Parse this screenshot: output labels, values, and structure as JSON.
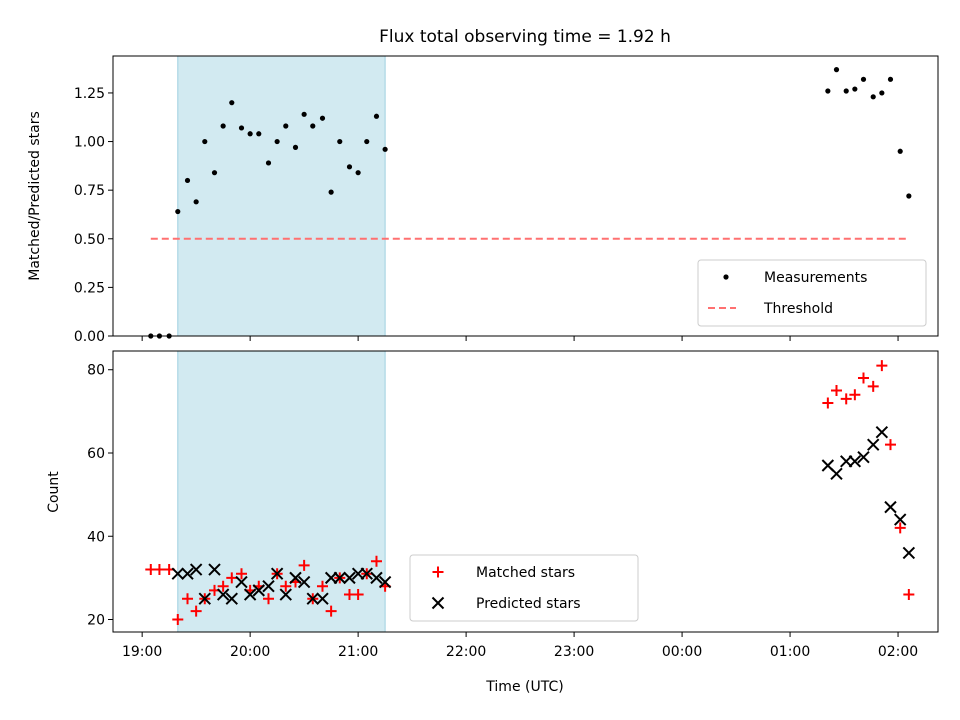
{
  "chart_data": [
    {
      "type": "scatter",
      "title": "Flux total observing time = 1.92 h",
      "ylabel": "Matched/Predicted stars",
      "xlabel": "",
      "xlim": [
        -0.27,
        7.37
      ],
      "ylim": [
        0,
        1.44
      ],
      "yticks": [
        0.0,
        0.25,
        0.5,
        0.75,
        1.0,
        1.25
      ],
      "ytick_labels": [
        "0.00",
        "0.25",
        "0.50",
        "0.75",
        "1.00",
        "1.25"
      ],
      "highlight_span": {
        "x0": 0.33,
        "x1": 2.25,
        "color": "#add8e6"
      },
      "legend_position": "lower right",
      "series": [
        {
          "name": "Measurements",
          "kind": "dot",
          "color": "#000000",
          "x": [
            0.08,
            0.16,
            0.25,
            0.33,
            0.42,
            0.5,
            0.58,
            0.67,
            0.75,
            0.83,
            0.92,
            1.0,
            1.08,
            1.17,
            1.25,
            1.33,
            1.42,
            1.5,
            1.58,
            1.67,
            1.75,
            1.83,
            1.92,
            2.0,
            2.08,
            2.17,
            2.25,
            6.35,
            6.43,
            6.52,
            6.6,
            6.68,
            6.77,
            6.85,
            6.93,
            7.02,
            7.1
          ],
          "y": [
            0.0,
            0.0,
            0.0,
            0.64,
            0.8,
            0.69,
            1.0,
            0.84,
            1.08,
            1.2,
            1.07,
            1.04,
            1.04,
            0.89,
            1.0,
            1.08,
            0.97,
            1.14,
            1.08,
            1.12,
            0.74,
            1.0,
            0.87,
            0.84,
            1.0,
            1.13,
            0.96,
            1.26,
            1.37,
            1.26,
            1.27,
            1.32,
            1.23,
            1.25,
            1.32,
            0.95,
            0.72
          ]
        },
        {
          "name": "Threshold",
          "kind": "dashed-line",
          "color": "#ff7070",
          "x": [
            0.08,
            7.1
          ],
          "y": [
            0.5,
            0.5
          ]
        }
      ]
    },
    {
      "type": "scatter",
      "title": "",
      "ylabel": "Count",
      "xlabel": "Time (UTC)",
      "xlim": [
        -0.27,
        7.37
      ],
      "ylim": [
        17,
        84.5
      ],
      "yticks": [
        20,
        40,
        60,
        80
      ],
      "ytick_labels": [
        "20",
        "40",
        "60",
        "80"
      ],
      "xticks": [
        0,
        1,
        2,
        3,
        4,
        5,
        6,
        7
      ],
      "xtick_labels": [
        "19:00",
        "20:00",
        "21:00",
        "22:00",
        "23:00",
        "00:00",
        "01:00",
        "02:00"
      ],
      "highlight_span": {
        "x0": 0.33,
        "x1": 2.25,
        "color": "#add8e6"
      },
      "legend_position": "lower center",
      "series": [
        {
          "name": "Matched stars",
          "kind": "plus",
          "color": "#ff0000",
          "x": [
            0.08,
            0.16,
            0.25,
            0.33,
            0.42,
            0.5,
            0.58,
            0.67,
            0.75,
            0.83,
            0.92,
            1.0,
            1.08,
            1.17,
            1.25,
            1.33,
            1.42,
            1.5,
            1.58,
            1.67,
            1.75,
            1.83,
            1.92,
            2.0,
            2.08,
            2.17,
            2.25,
            6.35,
            6.43,
            6.52,
            6.6,
            6.68,
            6.77,
            6.85,
            6.93,
            7.02,
            7.1
          ],
          "y": [
            32,
            32,
            32,
            20,
            25,
            22,
            25,
            27,
            28,
            30,
            31,
            27,
            28,
            25,
            31,
            28,
            29,
            33,
            25,
            28,
            22,
            30,
            26,
            26,
            31,
            34,
            28,
            72,
            75,
            73,
            74,
            78,
            76,
            81,
            62,
            42,
            26
          ]
        },
        {
          "name": "Predicted stars",
          "kind": "cross",
          "color": "#000000",
          "x": [
            0.33,
            0.42,
            0.5,
            0.58,
            0.67,
            0.75,
            0.83,
            0.92,
            1.0,
            1.08,
            1.17,
            1.25,
            1.33,
            1.42,
            1.5,
            1.58,
            1.67,
            1.75,
            1.83,
            1.92,
            2.0,
            2.08,
            2.17,
            2.25,
            6.35,
            6.43,
            6.52,
            6.6,
            6.68,
            6.77,
            6.85,
            6.93,
            7.02,
            7.1
          ],
          "y": [
            31,
            31,
            32,
            25,
            32,
            26,
            25,
            29,
            26,
            27,
            28,
            31,
            26,
            30,
            29,
            25,
            25,
            30,
            30,
            30,
            31,
            31,
            30,
            29,
            57,
            55,
            58,
            58,
            59,
            62,
            65,
            47,
            44,
            36
          ]
        }
      ]
    }
  ]
}
